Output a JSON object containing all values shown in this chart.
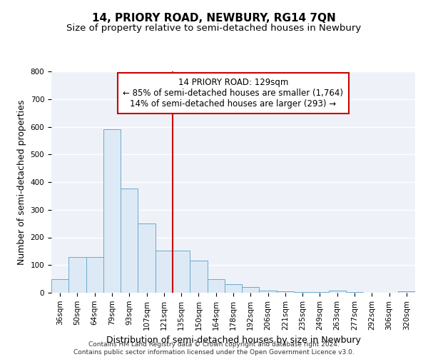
{
  "title": "14, PRIORY ROAD, NEWBURY, RG14 7QN",
  "subtitle": "Size of property relative to semi-detached houses in Newbury",
  "xlabel": "Distribution of semi-detached houses by size in Newbury",
  "ylabel": "Number of semi-detached properties",
  "footer_line1": "Contains HM Land Registry data © Crown copyright and database right 2024.",
  "footer_line2": "Contains public sector information licensed under the Open Government Licence v3.0.",
  "bar_labels": [
    "36sqm",
    "50sqm",
    "64sqm",
    "79sqm",
    "93sqm",
    "107sqm",
    "121sqm",
    "135sqm",
    "150sqm",
    "164sqm",
    "178sqm",
    "192sqm",
    "206sqm",
    "221sqm",
    "235sqm",
    "249sqm",
    "263sqm",
    "277sqm",
    "292sqm",
    "306sqm",
    "320sqm"
  ],
  "bar_values": [
    50,
    128,
    128,
    590,
    378,
    250,
    152,
    152,
    115,
    50,
    30,
    20,
    8,
    5,
    3,
    2,
    8,
    2,
    0,
    0,
    5
  ],
  "bar_color": "#ddeaf5",
  "bar_edge_color": "#6aa8d0",
  "property_line_color": "#cc0000",
  "annotation_text_line1": "14 PRIORY ROAD: 129sqm",
  "annotation_text_line2": "← 85% of semi-detached houses are smaller (1,764)",
  "annotation_text_line3": "14% of semi-detached houses are larger (293) →",
  "annotation_box_color": "#ffffff",
  "annotation_box_edge": "#cc0000",
  "ylim": [
    0,
    800
  ],
  "property_bin_index": 7,
  "title_fontsize": 11,
  "subtitle_fontsize": 9.5,
  "axis_label_fontsize": 9,
  "tick_fontsize": 7.5,
  "annotation_fontsize": 8.5,
  "footer_fontsize": 6.5,
  "bg_color": "#eef2f8"
}
